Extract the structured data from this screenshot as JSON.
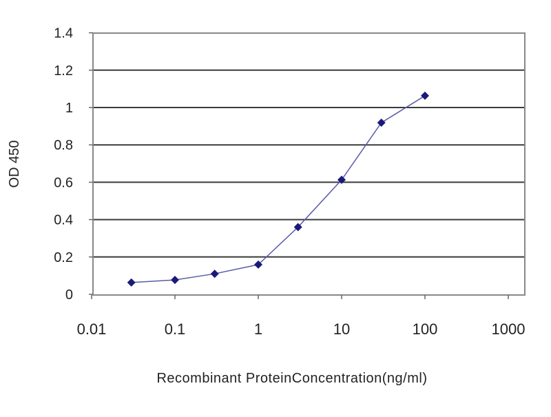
{
  "chart_data": {
    "type": "line",
    "title": "",
    "xlabel": "Recombinant ProteinConcentration(ng/ml)",
    "ylabel": "OD 450",
    "xscale": "log",
    "xlim": [
      0.01,
      1000
    ],
    "ylim": [
      0,
      1.4
    ],
    "xticks": [
      "0.01",
      "0.1",
      "1",
      "10",
      "100",
      "1000"
    ],
    "xtick_values": [
      0.01,
      0.1,
      1,
      10,
      100,
      1000
    ],
    "yticks": [
      "0",
      "0.2",
      "0.4",
      "0.6",
      "0.8",
      "1",
      "1.2",
      "1.4"
    ],
    "ytick_values": [
      0,
      0.2,
      0.4,
      0.6,
      0.8,
      1,
      1.2,
      1.4
    ],
    "grid": "horizontal",
    "series": [
      {
        "x": [
          0.03,
          0.1,
          0.3,
          1,
          3,
          10,
          30,
          100
        ],
        "y": [
          0.063,
          0.077,
          0.11,
          0.159,
          0.36,
          0.613,
          0.919,
          1.063
        ],
        "color": "#1a1a7a",
        "marker": "diamond"
      }
    ]
  }
}
